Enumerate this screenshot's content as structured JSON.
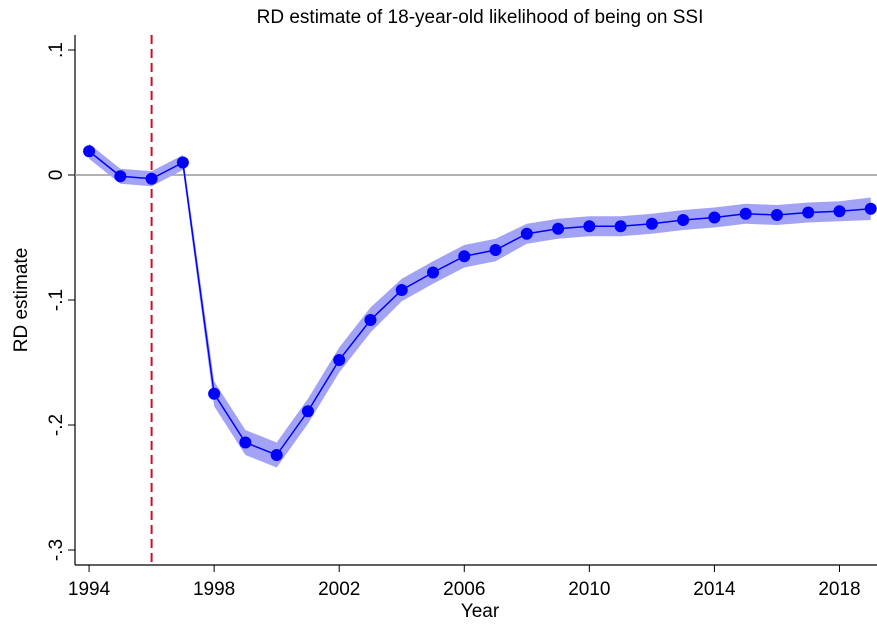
{
  "chart_data": {
    "type": "line",
    "title": "RD estimate of 18-year-old likelihood of being on SSI",
    "x_label": "Year",
    "y_label": "RD estimate",
    "x": [
      1994,
      1995,
      1996,
      1997,
      1998,
      1999,
      2000,
      2001,
      2002,
      2003,
      2004,
      2005,
      2006,
      2007,
      2008,
      2009,
      2010,
      2011,
      2012,
      2013,
      2014,
      2015,
      2016,
      2017,
      2018,
      2019
    ],
    "values": [
      0.019,
      -0.001,
      -0.003,
      0.01,
      -0.175,
      -0.214,
      -0.224,
      -0.189,
      -0.148,
      -0.116,
      -0.092,
      -0.078,
      -0.065,
      -0.06,
      -0.047,
      -0.043,
      -0.041,
      -0.041,
      -0.039,
      -0.036,
      -0.034,
      -0.031,
      -0.032,
      -0.03,
      -0.029,
      -0.027
    ],
    "ci_upper": [
      0.025,
      0.005,
      0.003,
      0.016,
      -0.165,
      -0.204,
      -0.214,
      -0.179,
      -0.138,
      -0.106,
      -0.083,
      -0.069,
      -0.056,
      -0.051,
      -0.039,
      -0.035,
      -0.033,
      -0.033,
      -0.031,
      -0.028,
      -0.026,
      -0.023,
      -0.024,
      -0.022,
      -0.021,
      -0.018
    ],
    "ci_lower": [
      0.013,
      -0.007,
      -0.009,
      0.004,
      -0.185,
      -0.224,
      -0.234,
      -0.199,
      -0.158,
      -0.126,
      -0.101,
      -0.087,
      -0.074,
      -0.069,
      -0.055,
      -0.051,
      -0.049,
      -0.049,
      -0.047,
      -0.044,
      -0.042,
      -0.039,
      -0.04,
      -0.038,
      -0.037,
      -0.036
    ],
    "color": "#0000ff",
    "ci_color": "#a3a3f5",
    "vline": 1996,
    "vline_color": "#c8102e",
    "hline": 0,
    "xlim": [
      1993.55,
      2019.2
    ],
    "ylim": [
      -0.312,
      0.112
    ],
    "xticks": [
      1994,
      1998,
      2002,
      2006,
      2010,
      2014,
      2018
    ],
    "yticks": [
      {
        "value": 0.1,
        "label": ".1"
      },
      0,
      {
        "value": -0.1,
        "label": "-.1"
      },
      {
        "value": -0.2,
        "label": "-.2"
      },
      {
        "value": -0.3,
        "label": "-.3"
      }
    ]
  }
}
